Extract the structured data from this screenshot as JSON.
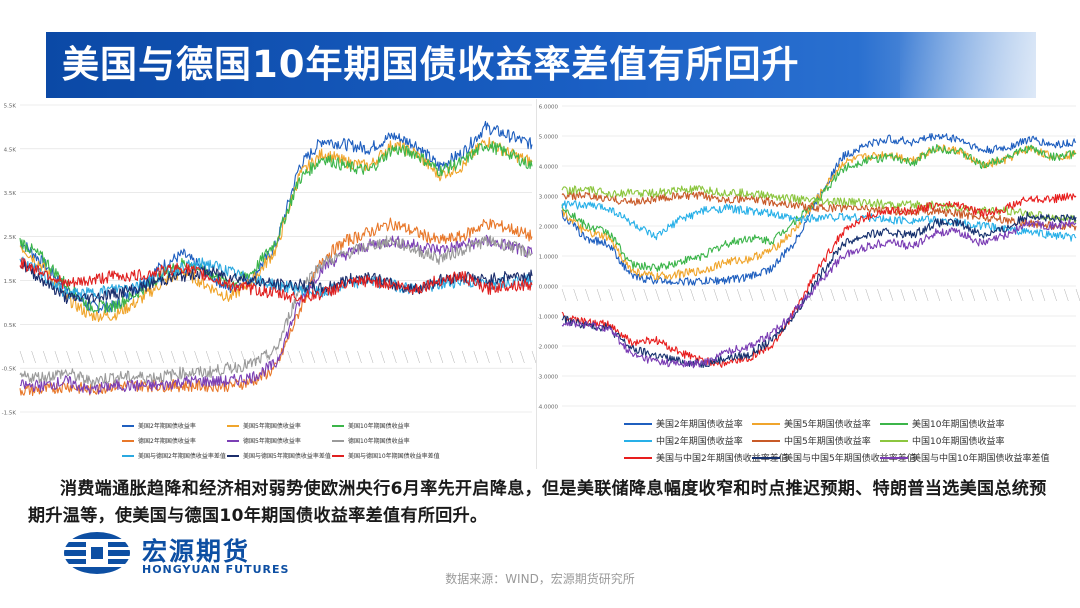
{
  "title": "美国与德国10年期国债收益率差值有所回升",
  "caption": "消费端通胀趋降和经济相对弱势使欧洲央行6月率先开启降息，但是美联储降息幅度收窄和时点推迟预期、特朗普当选美国总统预期升温等，使美国与德国10年期国债收益率差值有所回升。",
  "logo": {
    "cn": "宏源期货",
    "en": "HONGYUAN FUTURES"
  },
  "source": "数据来源：WIND，宏源期货研究所",
  "colors": {
    "us2": "#1f5fbf",
    "us5": "#f0a52c",
    "us10": "#3cb54a",
    "de2": "#e8782a",
    "de5": "#7b3fb5",
    "de10": "#9a9a9a",
    "d2": "#2aa8e0",
    "d5": "#1b2d6b",
    "d10": "#e02020",
    "cn2": "#28b0e8",
    "cn5": "#c85a28",
    "cn10": "#8cc63f",
    "uc2": "#e81e1e",
    "uc5": "#16306e",
    "uc10": "#7a3cb4"
  },
  "chart_data": [
    {
      "type": "line",
      "panel": "left",
      "ylim": [
        -1.3,
        5.7
      ],
      "yticks": [
        "5.5K",
        "4.5K",
        "3.5K",
        "2.5K",
        "1.5K",
        "0.5K",
        "-0.5K",
        "-1.5K"
      ],
      "legend_position": "bottom",
      "series": [
        {
          "name": "美国2年期国债收益率",
          "color_key": "us2",
          "values": [
            2.6,
            2.1,
            1.5,
            1.1,
            1.1,
            1.5,
            2.0,
            2.3,
            1.9,
            1.5,
            1.8,
            2.5,
            4.3,
            4.9,
            4.8,
            4.7,
            5.0,
            4.8,
            4.3,
            4.6,
            5.2,
            5.0,
            4.8
          ]
        },
        {
          "name": "美国5年期国债收益率",
          "color_key": "us5",
          "values": [
            2.5,
            2.0,
            1.3,
            0.9,
            0.9,
            1.2,
            1.6,
            1.9,
            1.6,
            1.3,
            1.7,
            2.4,
            4.1,
            4.6,
            4.4,
            4.3,
            4.8,
            4.6,
            4.1,
            4.3,
            4.9,
            4.6,
            4.4
          ]
        },
        {
          "name": "美国10年期国债收益率",
          "color_key": "us10",
          "values": [
            2.6,
            2.2,
            1.6,
            1.1,
            1.1,
            1.4,
            1.8,
            2.1,
            1.9,
            1.6,
            1.9,
            2.6,
            4.0,
            4.5,
            4.3,
            4.2,
            4.7,
            4.6,
            4.2,
            4.4,
            4.8,
            4.6,
            4.3
          ]
        },
        {
          "name": "德国2年期国债收益率",
          "color_key": "de2",
          "values": [
            -0.8,
            -0.8,
            -0.7,
            -0.8,
            -0.7,
            -0.7,
            -0.7,
            -0.7,
            -0.7,
            -0.7,
            -0.6,
            -0.3,
            1.0,
            2.2,
            2.6,
            2.8,
            3.0,
            2.8,
            2.6,
            2.7,
            3.0,
            2.9,
            2.7
          ]
        },
        {
          "name": "德国5年期国债收益率",
          "color_key": "de5",
          "values": [
            -0.7,
            -0.7,
            -0.6,
            -0.8,
            -0.7,
            -0.7,
            -0.7,
            -0.6,
            -0.6,
            -0.6,
            -0.5,
            -0.2,
            1.2,
            2.0,
            2.3,
            2.5,
            2.6,
            2.5,
            2.4,
            2.5,
            2.6,
            2.5,
            2.3
          ]
        },
        {
          "name": "德国10年期国债收益率",
          "color_key": "de10",
          "values": [
            -0.5,
            -0.5,
            -0.4,
            -0.6,
            -0.5,
            -0.5,
            -0.5,
            -0.4,
            -0.4,
            -0.3,
            -0.2,
            0.1,
            1.5,
            2.1,
            2.3,
            2.5,
            2.6,
            2.4,
            2.2,
            2.4,
            2.6,
            2.5,
            2.3
          ]
        },
        {
          "name": "美国与德国2年期国债收益率差值",
          "color_key": "d2",
          "values": [
            2.2,
            1.8,
            1.4,
            1.4,
            1.5,
            1.6,
            1.8,
            2.0,
            2.1,
            1.9,
            1.7,
            1.6,
            1.5,
            1.4,
            1.6,
            1.7,
            1.6,
            1.5,
            1.6,
            1.7,
            1.6,
            1.7,
            1.7
          ]
        },
        {
          "name": "美国与德国5年期国债收益率差值",
          "color_key": "d5",
          "values": [
            2.1,
            1.7,
            1.3,
            1.3,
            1.4,
            1.5,
            1.7,
            1.8,
            1.9,
            1.8,
            1.7,
            1.6,
            1.6,
            1.5,
            1.7,
            1.8,
            1.6,
            1.5,
            1.7,
            1.8,
            1.7,
            1.8,
            1.8
          ]
        },
        {
          "name": "美国与德国10年期国债收益率差值",
          "color_key": "d10",
          "values": [
            2.1,
            1.9,
            1.6,
            1.7,
            1.8,
            1.8,
            1.9,
            2.0,
            1.8,
            1.6,
            1.5,
            1.4,
            1.3,
            1.4,
            1.6,
            1.7,
            1.6,
            1.5,
            1.7,
            1.8,
            1.5,
            1.6,
            1.6
          ]
        }
      ]
    },
    {
      "type": "line",
      "panel": "right",
      "ylim": [
        -4.0,
        6.0
      ],
      "yticks": [
        "6.0000",
        "5.0000",
        "4.0000",
        "3.0000",
        "2.0000",
        "1.0000",
        "0.0000",
        "-1.0000",
        "-2.0000",
        "-3.0000",
        "-4.0000"
      ],
      "legend_position": "bottom",
      "series": [
        {
          "name": "美国2年期国债收益率",
          "color_key": "us2",
          "values": [
            2.4,
            1.6,
            1.4,
            0.3,
            0.2,
            0.15,
            0.15,
            0.2,
            0.3,
            0.6,
            1.5,
            3.0,
            4.3,
            4.7,
            4.9,
            4.8,
            5.0,
            4.9,
            4.5,
            4.6,
            4.9,
            4.7,
            4.8
          ]
        },
        {
          "name": "美国5年期国债收益率",
          "color_key": "us5",
          "values": [
            2.5,
            1.8,
            1.6,
            0.5,
            0.3,
            0.4,
            0.5,
            0.8,
            0.9,
            1.2,
            1.9,
            3.0,
            4.1,
            4.3,
            4.4,
            4.2,
            4.6,
            4.5,
            4.0,
            4.2,
            4.6,
            4.3,
            4.4
          ]
        },
        {
          "name": "美国10年期国债收益率",
          "color_key": "us10",
          "values": [
            2.7,
            2.0,
            1.8,
            0.7,
            0.6,
            0.8,
            1.0,
            1.4,
            1.6,
            1.5,
            2.2,
            2.9,
            3.9,
            4.2,
            4.3,
            4.1,
            4.6,
            4.5,
            4.0,
            4.3,
            4.6,
            4.3,
            4.4
          ]
        },
        {
          "name": "中国2年期国债收益率",
          "color_key": "cn2",
          "values": [
            2.7,
            2.7,
            2.6,
            2.1,
            1.6,
            2.2,
            2.5,
            2.6,
            2.5,
            2.4,
            2.2,
            2.3,
            2.3,
            2.3,
            2.2,
            2.2,
            2.2,
            2.1,
            2.0,
            1.9,
            1.8,
            1.7,
            1.6
          ]
        },
        {
          "name": "中国5年期国债收益率",
          "color_key": "cn5",
          "values": [
            3.0,
            3.0,
            2.9,
            2.8,
            2.9,
            3.0,
            3.0,
            2.9,
            2.9,
            2.8,
            2.7,
            2.6,
            2.6,
            2.6,
            2.5,
            2.5,
            2.5,
            2.4,
            2.3,
            2.2,
            2.1,
            2.0,
            2.0
          ]
        },
        {
          "name": "中国10年期国债收益率",
          "color_key": "cn10",
          "values": [
            3.2,
            3.2,
            3.1,
            3.1,
            3.1,
            3.2,
            3.2,
            3.1,
            3.1,
            3.0,
            2.9,
            2.8,
            2.8,
            2.8,
            2.7,
            2.7,
            2.7,
            2.6,
            2.5,
            2.5,
            2.4,
            2.3,
            2.2
          ]
        },
        {
          "name": "美国与中国2年期国债收益率差值",
          "color_key": "uc2",
          "values": [
            -1.0,
            -1.2,
            -1.3,
            -1.9,
            -1.8,
            -2.2,
            -2.5,
            -2.6,
            -2.4,
            -2.0,
            -0.8,
            0.6,
            1.8,
            2.3,
            2.5,
            2.5,
            2.7,
            2.7,
            2.4,
            2.6,
            2.9,
            2.9,
            3.0
          ]
        },
        {
          "name": "美国与中国5年期国债收益率差值",
          "color_key": "uc5",
          "values": [
            -1.1,
            -1.3,
            -1.4,
            -2.1,
            -2.3,
            -2.5,
            -2.6,
            -2.4,
            -2.3,
            -1.8,
            -0.9,
            0.3,
            1.4,
            1.7,
            1.8,
            1.7,
            2.1,
            2.1,
            1.7,
            1.9,
            2.4,
            2.2,
            2.3
          ]
        },
        {
          "name": "美国与中国10年期国债收益率差值",
          "color_key": "uc10",
          "values": [
            -1.2,
            -1.3,
            -1.4,
            -2.3,
            -2.5,
            -2.6,
            -2.6,
            -2.2,
            -2.0,
            -1.6,
            -0.8,
            0.1,
            1.0,
            1.3,
            1.5,
            1.3,
            1.8,
            1.8,
            1.4,
            1.7,
            2.1,
            2.0,
            2.1
          ]
        }
      ]
    }
  ]
}
